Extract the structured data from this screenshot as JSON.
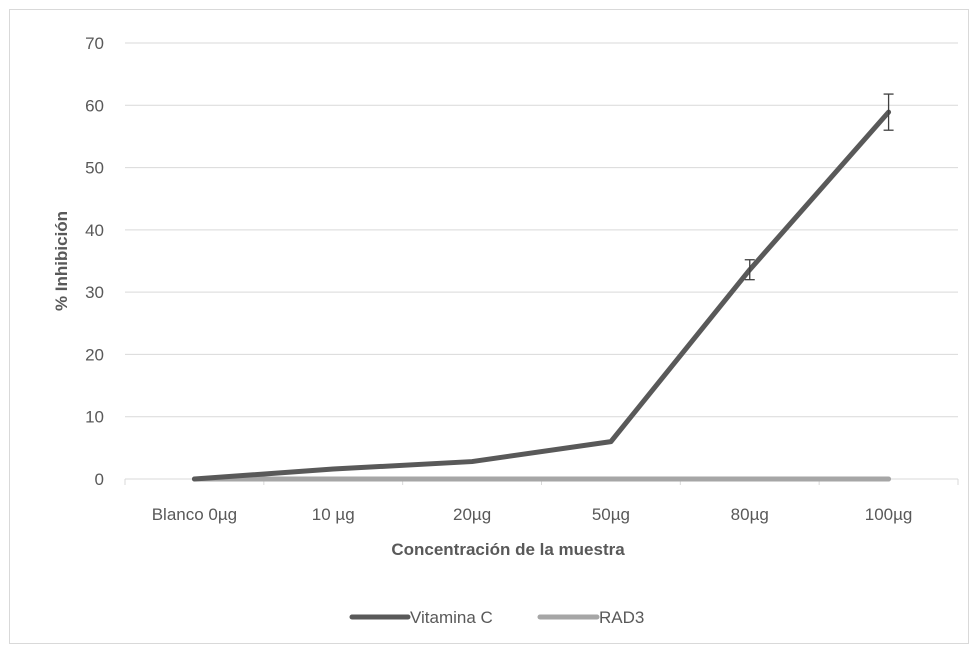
{
  "chart_data": {
    "type": "line",
    "title": "",
    "xlabel": "Concentración de la muestra",
    "ylabel": "% Inhibición",
    "categories": [
      "Blanco 0µg",
      "10 µg",
      "20µg",
      "50µg",
      "80µg",
      "100µg"
    ],
    "ylim": [
      0,
      70
    ],
    "yticks": [
      0,
      10,
      20,
      30,
      40,
      50,
      60,
      70
    ],
    "grid": true,
    "legend": "bottom",
    "series": [
      {
        "name": "Vitamina C",
        "color": "#595959",
        "values": [
          0,
          1.6,
          2.8,
          6.0,
          33.6,
          58.9
        ],
        "error": [
          null,
          null,
          null,
          null,
          1.6,
          2.9
        ]
      },
      {
        "name": "RAD3",
        "color": "#a6a6a6",
        "values": [
          0,
          0,
          0,
          0,
          0,
          0
        ],
        "error": [
          null,
          null,
          null,
          null,
          null,
          null
        ]
      }
    ]
  }
}
